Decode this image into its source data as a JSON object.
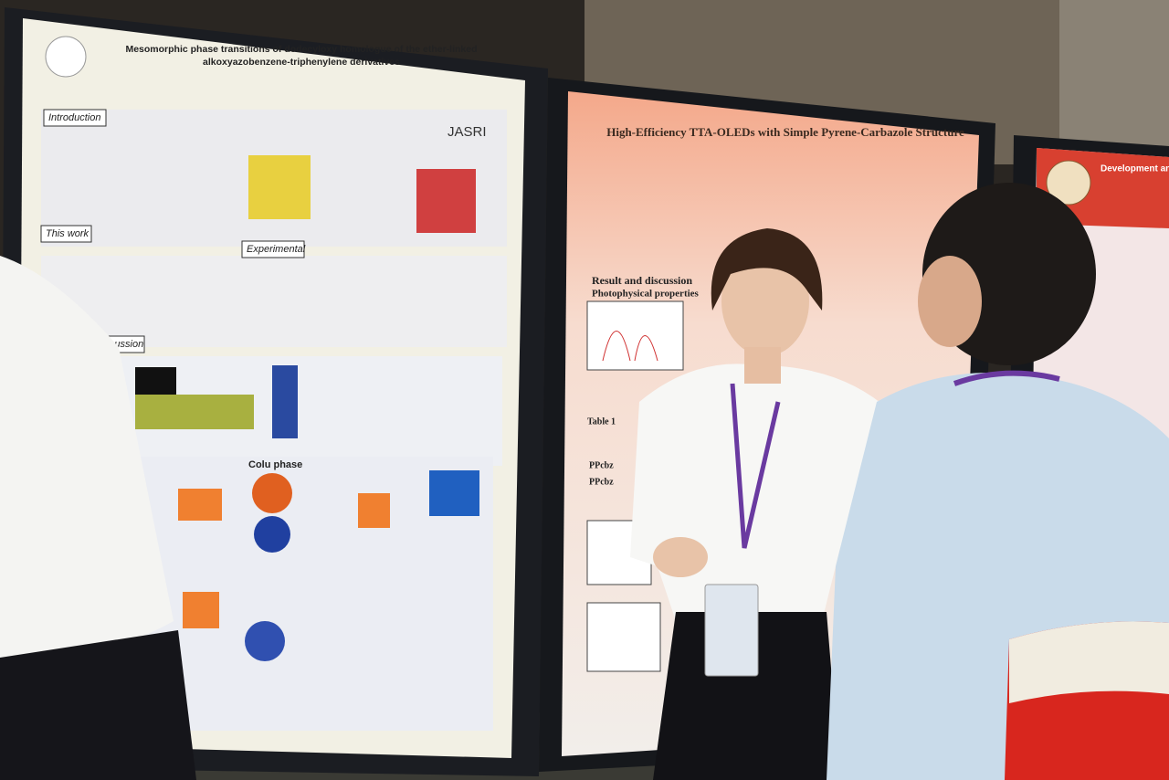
{
  "left_poster": {
    "title_lines": [
      "Mesomorphic phase transitions of dodecyloxy homologue of the ether-linked",
      "alkoxyazobenzene-triphenylene derivatives"
    ],
    "logo": "JASRI",
    "sections": [
      "Introduction",
      "This work",
      "Experimental",
      "Discussion",
      "Colu phase"
    ]
  },
  "middle_poster": {
    "title": "High-Efficiency TTA-OLEDs with Simple Pyrene-Carbazole Structure",
    "section": "Result and discussion",
    "subsection": "Photophysical properties",
    "table_caption": "Table 1",
    "row_labels": [
      "PPcbz",
      "PPcbz"
    ]
  },
  "right_poster": {
    "title": "Development and"
  }
}
